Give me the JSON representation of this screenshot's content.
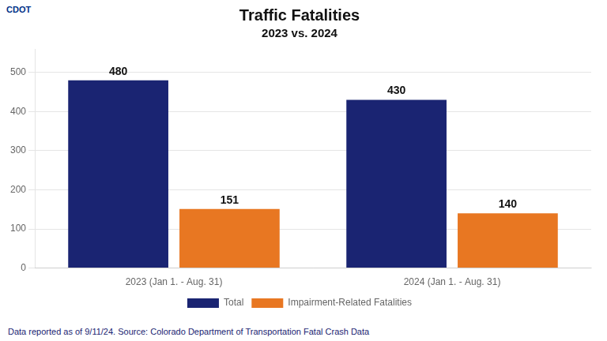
{
  "chart_data": {
    "type": "bar",
    "title": "Traffic Fatalities",
    "subtitle": "2023 vs. 2024",
    "categories": [
      "2023 (Jan 1. - Aug. 31)",
      "2024 (Jan 1. - Aug. 31)"
    ],
    "series": [
      {
        "name": "Total",
        "color": "#1a2472",
        "values": [
          480,
          430
        ]
      },
      {
        "name": "Impairment-Related Fatalities",
        "color": "#e87722",
        "values": [
          151,
          140
        ]
      }
    ],
    "ylim": [
      0,
      560
    ],
    "yticks": [
      0,
      100,
      200,
      300,
      400,
      500
    ],
    "grid": true,
    "legend": "bottom",
    "data_labels": true,
    "annotations": [
      "CDOT",
      "Data reported as of 9/11/24. Source: Colorado Department of Transportation Fatal Crash Data"
    ]
  }
}
